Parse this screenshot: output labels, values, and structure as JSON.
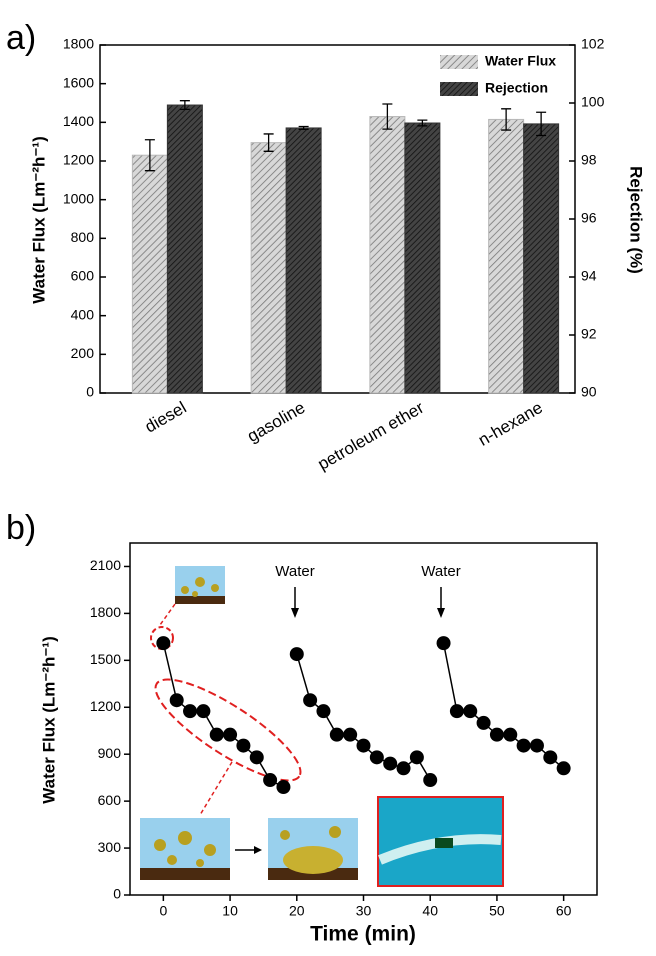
{
  "chart_data": [
    {
      "type": "bar",
      "panel_label": "a)",
      "categories": [
        "diesel",
        "gasoline",
        "petroleum ether",
        "n-hexane"
      ],
      "y_label": "Water Flux (Lm⁻²h⁻¹)",
      "y2_label": "Rejection (%)",
      "ylim": [
        0,
        1800
      ],
      "yticks": [
        0,
        200,
        400,
        600,
        800,
        1000,
        1200,
        1400,
        1600,
        1800
      ],
      "y2lim": [
        90,
        102
      ],
      "y2ticks": [
        90,
        92,
        94,
        96,
        98,
        100,
        102
      ],
      "legend": "top-right",
      "series": [
        {
          "name": "Water Flux",
          "color": "#b8b8b8",
          "values": [
            1230,
            1295,
            1430,
            1415
          ],
          "errors": [
            80,
            45,
            65,
            55
          ]
        },
        {
          "name": "Rejection",
          "color": "#333333",
          "axis": "y2",
          "values": [
            99.93,
            99.14,
            99.31,
            99.28
          ],
          "errors": [
            0.15,
            0.05,
            0.1,
            0.4
          ]
        }
      ]
    },
    {
      "type": "line",
      "panel_label": "b)",
      "x_label": "Time (min)",
      "y_label": "Water Flux (Lm⁻²h⁻¹)",
      "xlim": [
        -5,
        65
      ],
      "xticks": [
        0,
        10,
        20,
        30,
        40,
        50,
        60
      ],
      "ylim": [
        0,
        2250
      ],
      "yticks": [
        0,
        300,
        600,
        900,
        1200,
        1500,
        1800,
        2100
      ],
      "annotations": [
        "Water",
        "Water"
      ],
      "series": [
        {
          "color": "#000000",
          "x": [
            0,
            2,
            4,
            6,
            8,
            10,
            12,
            14,
            16,
            18
          ],
          "values": [
            1610,
            1245,
            1175,
            1175,
            1025,
            1025,
            955,
            880,
            735,
            690
          ]
        },
        {
          "color": "#000000",
          "x": [
            20,
            22,
            24,
            26,
            28,
            30,
            32,
            34,
            36,
            38,
            40
          ],
          "values": [
            1540,
            1245,
            1175,
            1025,
            1025,
            955,
            880,
            840,
            810,
            880,
            735
          ]
        },
        {
          "color": "#000000",
          "x": [
            42,
            44,
            46,
            48,
            50,
            52,
            54,
            56,
            58,
            60
          ],
          "values": [
            1610,
            1175,
            1175,
            1100,
            1025,
            1025,
            955,
            955,
            880,
            810
          ]
        }
      ]
    }
  ]
}
